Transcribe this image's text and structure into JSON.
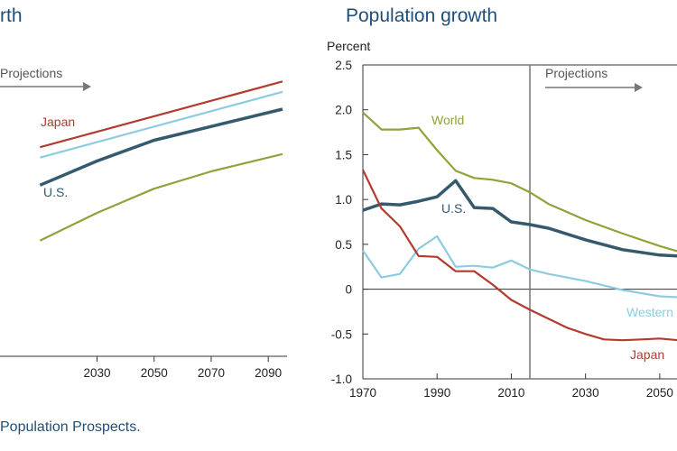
{
  "source_note": "Population Prospects.",
  "colors": {
    "title": "#1f4e79",
    "axis": "#333333",
    "projection_marker": "#777777",
    "world": "#8ea339",
    "us": "#365a6d",
    "japan": "#b33a2e",
    "western": "#8dcbe0"
  },
  "chart_data": [
    {
      "type": "line",
      "title": "rth",
      "projection_label": "Projections",
      "x_ticks": [
        2030,
        2050,
        2070,
        2090
      ],
      "xlim": [
        2010,
        2100
      ],
      "ylim": [
        0,
        10
      ],
      "series": [
        {
          "name": "Japan",
          "color": "#b33a2e",
          "x": [
            2010,
            2095
          ],
          "y": [
            7.7,
            9.6
          ]
        },
        {
          "name": "",
          "color": "#8dcbe0",
          "x": [
            2010,
            2095
          ],
          "y": [
            7.4,
            9.3
          ]
        },
        {
          "name": "U.S.",
          "color": "#365a6d",
          "x": [
            2010,
            2030,
            2050,
            2070,
            2095
          ],
          "y": [
            6.6,
            7.3,
            7.9,
            8.3,
            8.8
          ]
        },
        {
          "name": "",
          "color": "#8ea339",
          "x": [
            2010,
            2030,
            2050,
            2070,
            2095
          ],
          "y": [
            5.0,
            5.8,
            6.5,
            7.0,
            7.5
          ]
        }
      ]
    },
    {
      "type": "line",
      "title": "Population growth",
      "ylabel": "Percent",
      "projection_label": "Projections",
      "projection_start": 2015,
      "xlim": [
        1970,
        2060
      ],
      "ylim": [
        -1.0,
        2.5
      ],
      "x_ticks": [
        1970,
        1990,
        2010,
        2030,
        2050
      ],
      "y_ticks": [
        2.5,
        2.0,
        1.5,
        1.0,
        0.5,
        0,
        -0.5,
        -1.0
      ],
      "y_tick_labels": [
        "2.5",
        "2.0",
        "1.5",
        "1.0",
        "0.5",
        "0",
        "-0.5",
        "-1.0"
      ],
      "series": [
        {
          "name": "World",
          "color": "#8ea339",
          "x": [
            1970,
            1975,
            1980,
            1985,
            1990,
            1995,
            2000,
            2005,
            2010,
            2015,
            2020,
            2030,
            2040,
            2050,
            2055
          ],
          "y": [
            1.97,
            1.78,
            1.78,
            1.8,
            1.55,
            1.32,
            1.24,
            1.22,
            1.18,
            1.08,
            0.95,
            0.77,
            0.62,
            0.48,
            0.42
          ]
        },
        {
          "name": "U.S.",
          "color": "#365a6d",
          "x": [
            1970,
            1975,
            1980,
            1985,
            1990,
            1995,
            2000,
            2005,
            2010,
            2015,
            2020,
            2030,
            2040,
            2050,
            2055
          ],
          "y": [
            0.88,
            0.95,
            0.94,
            0.98,
            1.03,
            1.21,
            0.91,
            0.9,
            0.75,
            0.72,
            0.68,
            0.55,
            0.44,
            0.38,
            0.37
          ]
        },
        {
          "name": "Western",
          "color": "#8dcbe0",
          "x": [
            1970,
            1975,
            1980,
            1985,
            1990,
            1995,
            2000,
            2005,
            2010,
            2015,
            2020,
            2030,
            2040,
            2050,
            2055
          ],
          "y": [
            0.43,
            0.13,
            0.17,
            0.45,
            0.59,
            0.25,
            0.26,
            0.24,
            0.32,
            0.22,
            0.17,
            0.09,
            -0.01,
            -0.08,
            -0.09
          ]
        },
        {
          "name": "Japan",
          "color": "#b33a2e",
          "x": [
            1970,
            1975,
            1980,
            1985,
            1990,
            1995,
            2000,
            2005,
            2010,
            2015,
            2020,
            2025,
            2030,
            2035,
            2040,
            2045,
            2050,
            2055
          ],
          "y": [
            1.33,
            0.9,
            0.7,
            0.37,
            0.36,
            0.2,
            0.2,
            0.05,
            -0.12,
            -0.23,
            -0.33,
            -0.43,
            -0.5,
            -0.56,
            -0.57,
            -0.56,
            -0.55,
            -0.57
          ]
        }
      ]
    }
  ]
}
